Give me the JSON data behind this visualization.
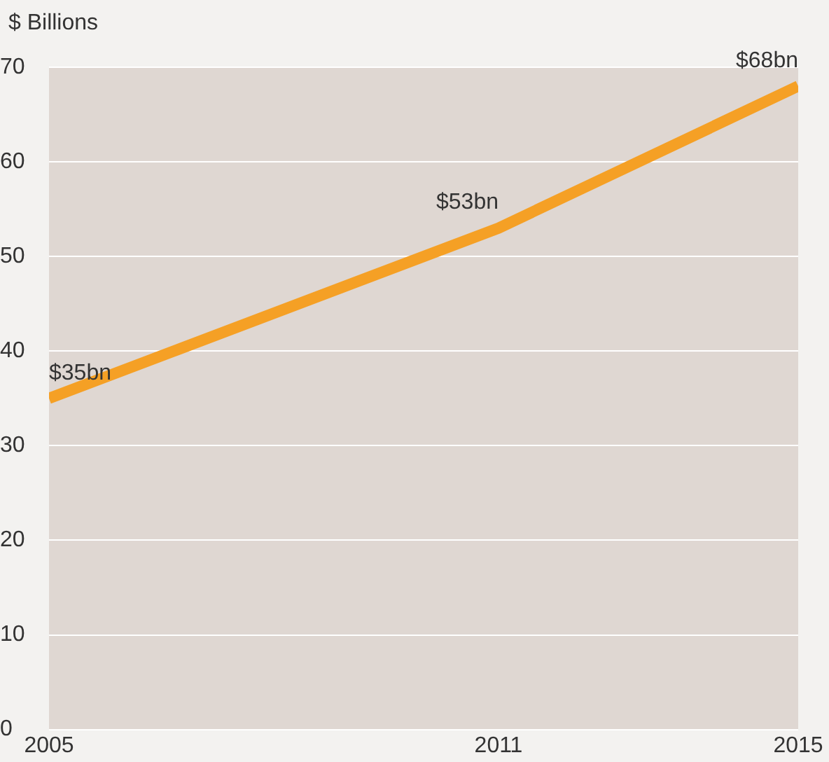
{
  "chart_data": {
    "type": "line",
    "ylabel": "$ Billions",
    "x": [
      2005,
      2011,
      2015
    ],
    "series": [
      {
        "color": "#f5a025",
        "values": [
          35,
          53,
          68
        ],
        "value_labels": [
          "$35bn",
          "$53bn",
          "$68bn"
        ]
      }
    ],
    "xlim": [
      2005,
      2015
    ],
    "xticks": [
      2005,
      2011,
      2015
    ],
    "ylim": [
      0,
      70
    ],
    "yticks": [
      0,
      10,
      20,
      30,
      40,
      50,
      60,
      70
    ],
    "grid": "y",
    "legend": false,
    "marker": "none",
    "line_style": "solid"
  }
}
